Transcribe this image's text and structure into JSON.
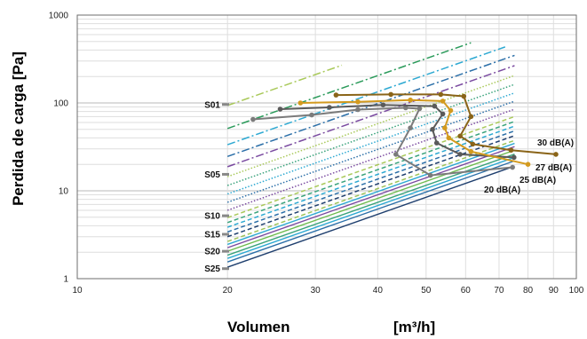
{
  "chart_data": {
    "type": "line",
    "title": "",
    "xlabel": "Volumen",
    "xunit": "[m³/h]",
    "ylabel": "Perdida de carga [Pa]",
    "x_scale": "log",
    "y_scale": "log",
    "xlim": [
      10,
      100
    ],
    "ylim": [
      1,
      1000
    ],
    "grid": true,
    "x_tick_labels": [
      "10",
      "20",
      "30",
      "40",
      "50",
      "60",
      "70",
      "80",
      "90",
      "100"
    ],
    "y_tick_labels": [
      "1",
      "10",
      "100",
      "1000"
    ],
    "setting_series": [
      {
        "name": "S01",
        "y_at_x20": 93.5,
        "x_end": 33.9,
        "color": "#a9c95a",
        "dash": "dashdot",
        "label_y": 96
      },
      {
        "name": "",
        "y_at_x20": 51.2,
        "x_end": 61.5,
        "color": "#2a9a5a",
        "dash": "dashdot"
      },
      {
        "name": "",
        "y_at_x20": 33.5,
        "x_end": 72.0,
        "color": "#2da9d2",
        "dash": "dashdot"
      },
      {
        "name": "",
        "y_at_x20": 24.6,
        "x_end": 75.2,
        "color": "#2b6fa8",
        "dash": "dashdot"
      },
      {
        "name": "",
        "y_at_x20": 18.8,
        "x_end": 75.2,
        "color": "#7a4aa0",
        "dash": "dashdot"
      },
      {
        "name": "S05",
        "y_at_x20": 14.5,
        "x_end": 75.2,
        "color": "#a9c95a",
        "dash": "dot",
        "label_y": 15.4
      },
      {
        "name": "",
        "y_at_x20": 11.5,
        "x_end": 75.2,
        "color": "#3aa37c",
        "dash": "dot"
      },
      {
        "name": "",
        "y_at_x20": 9.2,
        "x_end": 75.2,
        "color": "#2da9d2",
        "dash": "dot"
      },
      {
        "name": "",
        "y_at_x20": 7.4,
        "x_end": 75.2,
        "color": "#2b6fa8",
        "dash": "dot"
      },
      {
        "name": "",
        "y_at_x20": 6.0,
        "x_end": 75.2,
        "color": "#7a4aa0",
        "dash": "dot"
      },
      {
        "name": "S10",
        "y_at_x20": 4.95,
        "x_end": 75.2,
        "color": "#a9c95a",
        "dash": "dash",
        "label_y": 5.2
      },
      {
        "name": "",
        "y_at_x20": 4.35,
        "x_end": 75.2,
        "color": "#3aa37c",
        "dash": "dash"
      },
      {
        "name": "",
        "y_at_x20": 3.85,
        "x_end": 75.2,
        "color": "#2da9d2",
        "dash": "dash"
      },
      {
        "name": "",
        "y_at_x20": 3.4,
        "x_end": 75.2,
        "color": "#2b6fa8",
        "dash": "dash"
      },
      {
        "name": "",
        "y_at_x20": 3.0,
        "x_end": 75.2,
        "color": "#1f3f6e",
        "dash": "dash"
      },
      {
        "name": "S15",
        "y_at_x20": 2.65,
        "x_end": 75.2,
        "color": "#9dc35a",
        "dash": "dash",
        "label_y": 3.2
      },
      {
        "name": "",
        "y_at_x20": 2.45,
        "x_end": 75.2,
        "color": "#2da9d2",
        "dash": "solid"
      },
      {
        "name": "",
        "y_at_x20": 2.25,
        "x_end": 75.2,
        "color": "#7a4aa0",
        "dash": "solid"
      },
      {
        "name": "",
        "y_at_x20": 2.05,
        "x_end": 75.2,
        "color": "#6dbb4f",
        "dash": "solid"
      },
      {
        "name": "S20",
        "y_at_x20": 1.85,
        "x_end": 75.2,
        "color": "#3aa37c",
        "dash": "solid",
        "label_y": 2.05
      },
      {
        "name": "",
        "y_at_x20": 1.7,
        "x_end": 75.2,
        "color": "#2da9d2",
        "dash": "solid"
      },
      {
        "name": "",
        "y_at_x20": 1.55,
        "x_end": 75.2,
        "color": "#2b6fa8",
        "dash": "solid"
      },
      {
        "name": "S25",
        "y_at_x20": 1.35,
        "x_end": 75.2,
        "color": "#1f3f6e",
        "dash": "solid",
        "label_y": 1.3
      }
    ],
    "noise_curves": [
      {
        "name": "20 dB(A)",
        "color": "#7b7b7b",
        "points": [
          [
            22.5,
            65
          ],
          [
            29.5,
            73
          ],
          [
            36.5,
            84
          ],
          [
            45.5,
            88
          ],
          [
            48.5,
            86
          ],
          [
            46.5,
            52
          ],
          [
            43.5,
            26
          ],
          [
            51.0,
            15
          ],
          [
            74.5,
            18.5
          ]
        ]
      },
      {
        "name": "25 dB(A)",
        "color": "#5a5a5a",
        "points": [
          [
            25.5,
            85
          ],
          [
            32.0,
            89
          ],
          [
            41.0,
            95
          ],
          [
            52.0,
            92
          ],
          [
            54.0,
            75
          ],
          [
            51.5,
            50
          ],
          [
            52.5,
            35
          ],
          [
            58.5,
            26
          ],
          [
            75.0,
            24
          ]
        ]
      },
      {
        "name": "27 dB(A)",
        "color": "#d39a1e",
        "points": [
          [
            28.0,
            100
          ],
          [
            36.5,
            103
          ],
          [
            46.5,
            108
          ],
          [
            54.0,
            105
          ],
          [
            56.0,
            82
          ],
          [
            54.5,
            52
          ],
          [
            55.5,
            40
          ],
          [
            61.5,
            28
          ],
          [
            80.0,
            20
          ]
        ]
      },
      {
        "name": "30 dB(A)",
        "color": "#8a6418",
        "points": [
          [
            33.0,
            123
          ],
          [
            42.5,
            125
          ],
          [
            53.5,
            125
          ],
          [
            59.5,
            119
          ],
          [
            61.5,
            70
          ],
          [
            58.5,
            42
          ],
          [
            62.0,
            34
          ],
          [
            74.0,
            29
          ],
          [
            91.0,
            26
          ]
        ]
      }
    ]
  },
  "labels": {
    "y_axis_title": "Perdida de carga [Pa]",
    "x_axis_title": "Volumen",
    "x_axis_unit": "[m³/h]"
  }
}
